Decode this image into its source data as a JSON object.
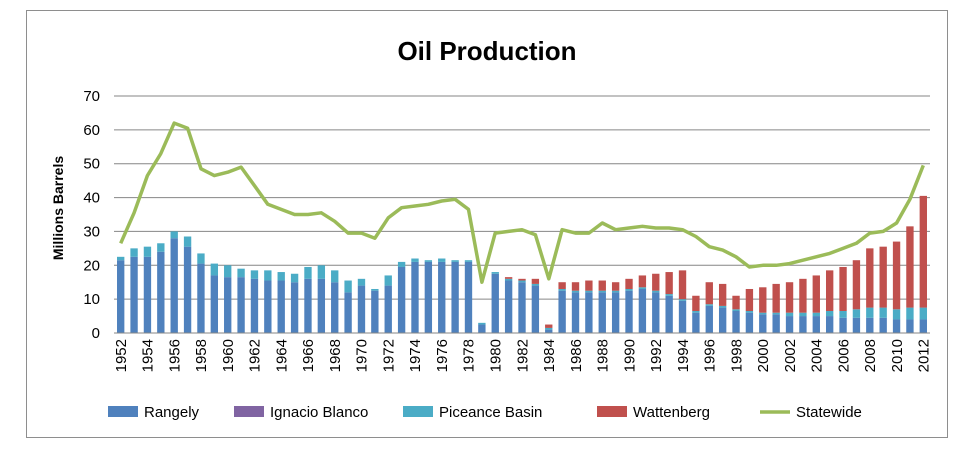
{
  "chart_data": {
    "type": "bar",
    "subtype": "stacked-bar-with-line",
    "title": "Oil Production",
    "xlabel": "",
    "ylabel": "Millions Barrels",
    "ylim": [
      0,
      70
    ],
    "yticks": [
      0,
      10,
      20,
      30,
      40,
      50,
      60,
      70
    ],
    "grid": true,
    "legend_position": "bottom",
    "categories": [
      1952,
      1953,
      1954,
      1955,
      1956,
      1957,
      1958,
      1959,
      1960,
      1961,
      1962,
      1963,
      1964,
      1965,
      1966,
      1967,
      1968,
      1969,
      1970,
      1971,
      1972,
      1973,
      1974,
      1975,
      1976,
      1977,
      1978,
      1979,
      1980,
      1981,
      1982,
      1983,
      1984,
      1985,
      1986,
      1987,
      1988,
      1989,
      1990,
      1991,
      1992,
      1993,
      1994,
      1995,
      1996,
      1997,
      1998,
      1999,
      2000,
      2001,
      2002,
      2003,
      2004,
      2005,
      2006,
      2007,
      2008,
      2009,
      2010,
      2011,
      2012
    ],
    "xtick_labels": [
      "1952",
      "1954",
      "1956",
      "1958",
      "1960",
      "1962",
      "1964",
      "1966",
      "1968",
      "1970",
      "1972",
      "1974",
      "1976",
      "1978",
      "1980",
      "1982",
      "1984",
      "1986",
      "1988",
      "1990",
      "1992",
      "1994",
      "1996",
      "1998",
      "2000",
      "2002",
      "2004",
      "2006",
      "2008",
      "2010",
      "2012"
    ],
    "series": [
      {
        "name": "Rangely",
        "kind": "bar",
        "color": "#4f81bd",
        "values": [
          21.5,
          22.5,
          22.5,
          24,
          28,
          25.5,
          20.5,
          17,
          16.5,
          16.5,
          16,
          15.5,
          15.5,
          15,
          16,
          16,
          15,
          12,
          14,
          12.5,
          14,
          19.5,
          21,
          21,
          21,
          21,
          21,
          2.5,
          17.5,
          15.5,
          15,
          14,
          1,
          12.5,
          12,
          12,
          12,
          12,
          12.5,
          13,
          12,
          11,
          9.5,
          6,
          8,
          7.5,
          6.5,
          6,
          5.5,
          5.5,
          5,
          5,
          5,
          5,
          4.5,
          4.5,
          4.5,
          4.5,
          4,
          4,
          4
        ]
      },
      {
        "name": "Ignacio Blanco",
        "kind": "bar",
        "color": "#8064a2",
        "values": [
          0,
          0,
          0,
          0,
          0,
          0,
          0,
          0,
          0,
          0,
          0,
          0,
          0,
          0,
          0,
          0,
          0,
          0,
          0,
          0,
          0,
          0,
          0,
          0,
          0,
          0,
          0,
          0,
          0,
          0,
          0,
          0,
          0,
          0,
          0,
          0,
          0,
          0,
          0,
          0,
          0,
          0,
          0,
          0,
          0,
          0,
          0,
          0,
          0,
          0,
          0,
          0,
          0,
          0,
          0,
          0,
          0,
          0,
          0,
          0,
          0
        ]
      },
      {
        "name": "Piceance Basin",
        "kind": "bar",
        "color": "#4bacc6",
        "values": [
          1,
          2.5,
          3,
          2.5,
          2,
          3,
          3,
          3.5,
          3.5,
          2.5,
          2.5,
          3,
          2.5,
          2.5,
          3.5,
          4,
          3.5,
          3.5,
          2,
          0.5,
          3,
          1.5,
          1,
          0.5,
          1,
          0.5,
          0.5,
          0.5,
          0.5,
          0.5,
          0.5,
          0.5,
          0.5,
          0.5,
          0.5,
          0.5,
          0.5,
          0.5,
          0.5,
          0.5,
          0.5,
          0.5,
          0.5,
          0.5,
          0.5,
          0.5,
          0.5,
          0.5,
          0.5,
          0.5,
          1,
          1,
          1,
          1.5,
          2,
          2.5,
          3,
          3,
          3,
          3.5,
          3.5
        ]
      },
      {
        "name": "Wattenberg",
        "kind": "bar",
        "color": "#c0504d",
        "values": [
          0,
          0,
          0,
          0,
          0,
          0,
          0,
          0,
          0,
          0,
          0,
          0,
          0,
          0,
          0,
          0,
          0,
          0,
          0,
          0,
          0,
          0,
          0,
          0,
          0,
          0,
          0,
          0,
          0,
          0.5,
          0.5,
          1.5,
          1,
          2,
          2.5,
          3,
          3,
          2.5,
          3,
          3.5,
          5,
          6.5,
          8.5,
          4.5,
          6.5,
          6.5,
          4,
          6.5,
          7.5,
          8.5,
          9,
          10,
          11,
          12,
          13,
          14.5,
          17.5,
          18,
          20,
          24,
          33
        ]
      },
      {
        "name": "Statewide",
        "kind": "line",
        "color": "#9bbb59",
        "values": [
          26.5,
          35.5,
          46.5,
          53,
          62,
          60.5,
          48.5,
          46.5,
          47.5,
          49,
          43.5,
          38,
          36.5,
          35,
          35,
          35.5,
          33,
          29.5,
          29.5,
          28,
          34,
          37,
          37.5,
          38,
          39,
          39.5,
          36.5,
          15,
          29.5,
          30,
          30.5,
          29,
          16,
          30.5,
          29.5,
          29.5,
          32.5,
          30.5,
          31,
          31.5,
          31,
          31,
          30.5,
          28.5,
          25.5,
          24.5,
          22.5,
          19.5,
          20,
          20,
          20.5,
          21.5,
          22.5,
          23.5,
          25,
          26.5,
          29.5,
          30,
          32.5,
          39.5,
          49.5
        ]
      }
    ]
  }
}
